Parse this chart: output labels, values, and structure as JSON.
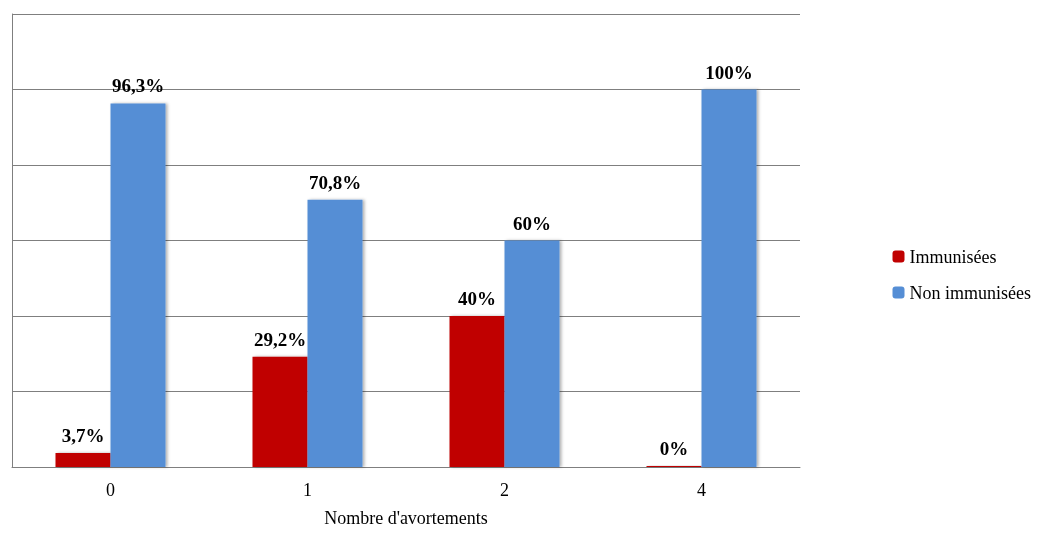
{
  "chart_data": {
    "type": "bar",
    "xlabel": "Nombre d'avortements",
    "categories": [
      "0",
      "1",
      "2",
      "4"
    ],
    "series": [
      {
        "name": "Immunisées",
        "color": "#c00000",
        "values": [
          3.7,
          29.2,
          40,
          0
        ],
        "value_labels": [
          "3,7%",
          "29,2%",
          "40%",
          "0%"
        ]
      },
      {
        "name": "Non immunisées",
        "color": "#558ed5",
        "values": [
          96.3,
          70.8,
          60,
          100
        ],
        "value_labels": [
          "96,3%",
          "70,8%",
          "60%",
          "100%"
        ]
      }
    ],
    "ylim": [
      0,
      120
    ],
    "yticks": [
      {
        "value": 0,
        "label": null
      },
      {
        "value": 20,
        "label": null
      },
      {
        "value": 40,
        "label": null
      },
      {
        "value": 60,
        "label": null
      },
      {
        "value": 80,
        "label": null
      },
      {
        "value": 100,
        "label": null
      },
      {
        "value": 120,
        "label": null
      }
    ],
    "tick_labels": "x",
    "grid": "y",
    "legend": "right"
  }
}
